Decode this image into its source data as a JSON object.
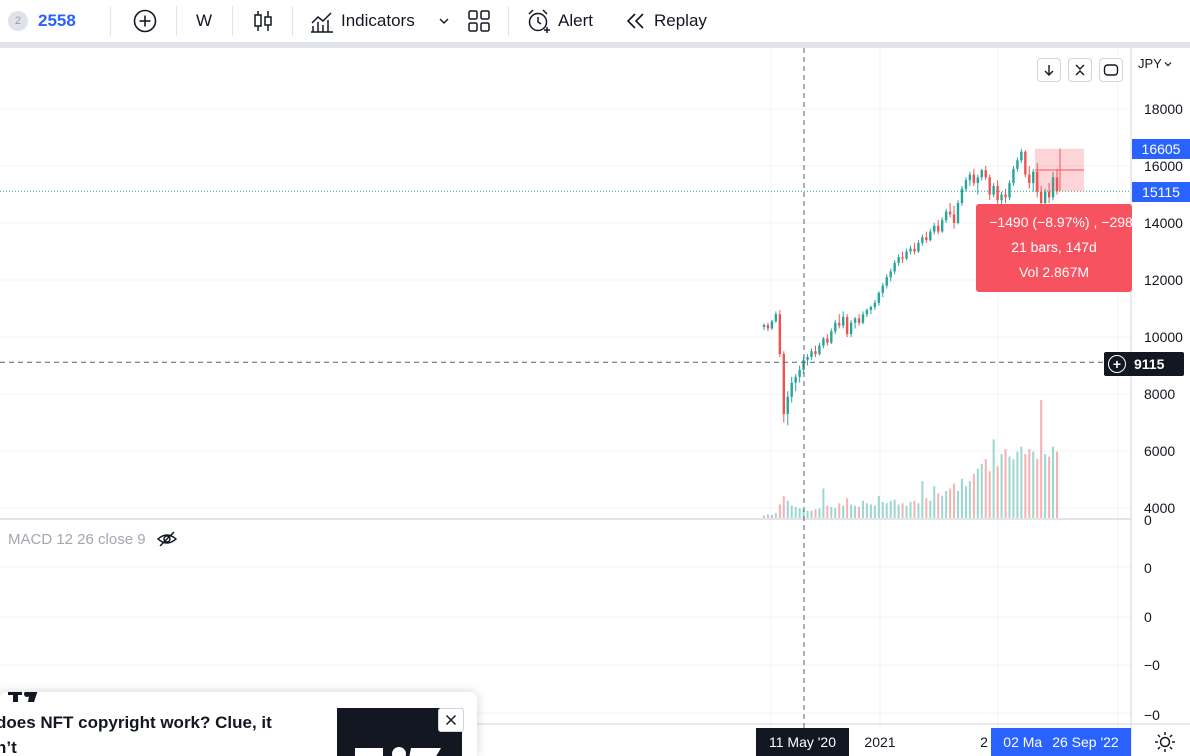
{
  "toolbar": {
    "symbol_badge": "2",
    "symbol": "2558",
    "interval": "W",
    "indicators_label": "Indicators",
    "alert_label": "Alert",
    "replay_label": "Replay",
    "icons": [
      "plus-circle-icon",
      "candlestick-icon",
      "indicators-icon",
      "chevron-down-icon",
      "layout-grid-icon",
      "alarm-clock-icon",
      "replay-icon"
    ]
  },
  "price_axis": {
    "currency": "JPY",
    "ticks": [
      "18000",
      "16000",
      "14000",
      "12000",
      "10000",
      "8000",
      "6000",
      "4000"
    ],
    "high_label": "16605",
    "last_label": "15115",
    "crosshair_label": "9115",
    "colors": {
      "high": "#2962ff",
      "last": "#2962ff",
      "crosshair": "#131722"
    }
  },
  "measure": {
    "line1": "−1490 (−8.97%) , −298",
    "line2": "21 bars, 147d",
    "line3": "Vol 2.867M",
    "color": "#f7525f"
  },
  "macd": {
    "legend": "MACD 12 26 close 9",
    "axis_ticks": [
      "0",
      "0",
      "0",
      "−0",
      "−0"
    ],
    "icons": [
      "eye-crossed-icon"
    ]
  },
  "time_axis": {
    "crosshair_date": "11 May '20",
    "year_label": "2021",
    "year_partial": "2",
    "range_start": "02 Ma",
    "range_end": "26 Sep '22",
    "colors": {
      "crosshair": "#131722",
      "range": "#2962ff"
    }
  },
  "news": {
    "title": "does NFT copyright work? Clue, it\nn’t",
    "icons": [
      "tradingview-logo-icon",
      "close-icon"
    ]
  },
  "colors": {
    "up": "#26a69a",
    "down": "#ef5350",
    "grid": "#f0f3fa"
  },
  "chart_data": {
    "type": "candlestick",
    "price_range": [
      3800,
      19500
    ],
    "ohlc": [
      [
        10350,
        10480,
        10250,
        10420
      ],
      [
        10420,
        10500,
        10200,
        10300
      ],
      [
        10300,
        10600,
        10250,
        10550
      ],
      [
        10550,
        10900,
        10500,
        10800
      ],
      [
        10800,
        10950,
        9300,
        9400
      ],
      [
        9400,
        9500,
        7000,
        7300
      ],
      [
        7300,
        8100,
        6900,
        7900
      ],
      [
        7900,
        8600,
        7700,
        8400
      ],
      [
        8400,
        8700,
        8100,
        8600
      ],
      [
        8600,
        9000,
        8400,
        8850
      ],
      [
        8850,
        9300,
        8700,
        9200
      ],
      [
        9200,
        9400,
        9000,
        9300
      ],
      [
        9300,
        9600,
        9200,
        9500
      ],
      [
        9500,
        9700,
        9300,
        9400
      ],
      [
        9400,
        9800,
        9350,
        9700
      ],
      [
        9700,
        10000,
        9600,
        9950
      ],
      [
        9950,
        10100,
        9700,
        9800
      ],
      [
        9800,
        10300,
        9750,
        10200
      ],
      [
        10200,
        10600,
        10100,
        10500
      ],
      [
        10500,
        10800,
        10300,
        10400
      ],
      [
        10400,
        10900,
        10300,
        10700
      ],
      [
        10700,
        10800,
        10000,
        10100
      ],
      [
        10100,
        10600,
        10000,
        10500
      ],
      [
        10500,
        10700,
        10300,
        10650
      ],
      [
        10650,
        10800,
        10400,
        10500
      ],
      [
        10500,
        10900,
        10450,
        10800
      ],
      [
        10800,
        11000,
        10700,
        10950
      ],
      [
        10950,
        11100,
        10800,
        11050
      ],
      [
        11050,
        11300,
        10950,
        11200
      ],
      [
        11200,
        11600,
        11100,
        11550
      ],
      [
        11550,
        11900,
        11400,
        11800
      ],
      [
        11800,
        12200,
        11700,
        12100
      ],
      [
        12100,
        12400,
        11950,
        12300
      ],
      [
        12300,
        12700,
        12200,
        12600
      ],
      [
        12600,
        12900,
        12500,
        12800
      ],
      [
        12800,
        13000,
        12600,
        12750
      ],
      [
        12750,
        13100,
        12700,
        13000
      ],
      [
        13000,
        13200,
        12900,
        13100
      ],
      [
        13100,
        13300,
        12900,
        13000
      ],
      [
        13000,
        13400,
        12950,
        13300
      ],
      [
        13300,
        13600,
        13200,
        13500
      ],
      [
        13500,
        13700,
        13300,
        13400
      ],
      [
        13400,
        13800,
        13350,
        13700
      ],
      [
        13700,
        14000,
        13600,
        13900
      ],
      [
        13900,
        14100,
        13600,
        13700
      ],
      [
        13700,
        14200,
        13650,
        14100
      ],
      [
        14100,
        14500,
        14000,
        14400
      ],
      [
        14400,
        14700,
        14200,
        14300
      ],
      [
        14300,
        14600,
        13800,
        14000
      ],
      [
        14000,
        14800,
        13950,
        14700
      ],
      [
        14700,
        15300,
        14600,
        15200
      ],
      [
        15200,
        15600,
        15100,
        15500
      ],
      [
        15500,
        15800,
        15300,
        15700
      ],
      [
        15700,
        15900,
        15300,
        15400
      ],
      [
        15400,
        15700,
        15000,
        15600
      ],
      [
        15600,
        15900,
        15500,
        15850
      ],
      [
        15850,
        16000,
        15500,
        15600
      ],
      [
        15600,
        15700,
        14800,
        15000
      ],
      [
        15000,
        15400,
        14900,
        15300
      ],
      [
        15300,
        15500,
        14600,
        14800
      ],
      [
        14800,
        15100,
        14500,
        15000
      ],
      [
        15000,
        15200,
        14700,
        14900
      ],
      [
        14900,
        15500,
        14800,
        15400
      ],
      [
        15400,
        16000,
        15300,
        15900
      ],
      [
        15900,
        16300,
        15800,
        16200
      ],
      [
        16200,
        16605,
        16100,
        16500
      ],
      [
        16500,
        16550,
        15600,
        15700
      ],
      [
        15700,
        16000,
        15200,
        15400
      ],
      [
        15400,
        15900,
        15100,
        15800
      ],
      [
        15800,
        16100,
        14900,
        15100
      ],
      [
        15100,
        15300,
        14500,
        14700
      ],
      [
        14700,
        15200,
        14600,
        15100
      ],
      [
        15100,
        15400,
        14700,
        14900
      ],
      [
        14900,
        15800,
        14800,
        15600
      ],
      [
        15600,
        15900,
        15000,
        15115
      ]
    ],
    "volume_millions": [
      0.1,
      0.15,
      0.12,
      0.2,
      0.55,
      0.9,
      0.7,
      0.5,
      0.45,
      0.4,
      0.35,
      0.3,
      0.3,
      0.35,
      0.4,
      1.2,
      0.5,
      0.45,
      0.4,
      0.6,
      0.5,
      0.8,
      0.55,
      0.5,
      0.45,
      0.7,
      0.6,
      0.55,
      0.5,
      0.9,
      0.65,
      0.6,
      0.7,
      0.75,
      0.55,
      0.6,
      0.5,
      0.65,
      0.7,
      0.6,
      1.5,
      0.8,
      0.7,
      1.3,
      1.0,
      0.9,
      1.1,
      1.2,
      1.4,
      1.1,
      1.6,
      1.3,
      1.5,
      1.8,
      2.0,
      2.2,
      2.4,
      1.9,
      3.2,
      2.1,
      2.6,
      2.8,
      2.5,
      2.4,
      2.7,
      2.9,
      2.6,
      2.8,
      2.7,
      2.4,
      4.8,
      2.6,
      2.5,
      2.9,
      2.7
    ]
  }
}
